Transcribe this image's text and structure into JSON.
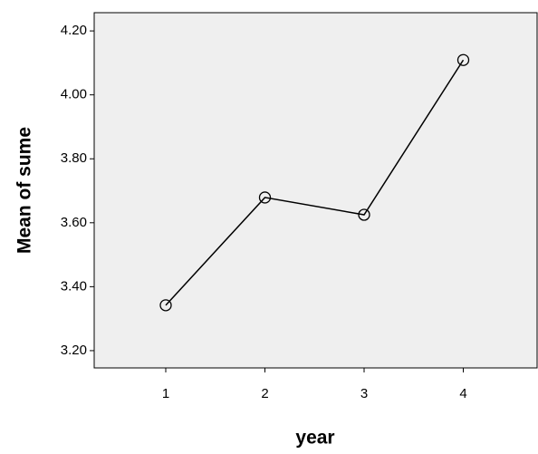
{
  "chart_data": {
    "type": "line",
    "x_label": "year",
    "y_label": "Mean of sume",
    "categories": [
      "1",
      "2",
      "3",
      "4"
    ],
    "series": [
      {
        "name": "Mean of sume",
        "color": "#000000",
        "values": [
          3.342,
          3.679,
          3.625,
          4.109
        ]
      }
    ],
    "ylim": [
      3.146,
      4.257
    ],
    "yticks": [
      {
        "value": 3.2,
        "label": "3.20"
      },
      {
        "value": 3.4,
        "label": "3.40"
      },
      {
        "value": 3.6,
        "label": "3.60"
      },
      {
        "value": 3.8,
        "label": "3.80"
      },
      {
        "value": 4.0,
        "label": "4.00"
      },
      {
        "value": 4.2,
        "label": "4.20"
      }
    ]
  }
}
